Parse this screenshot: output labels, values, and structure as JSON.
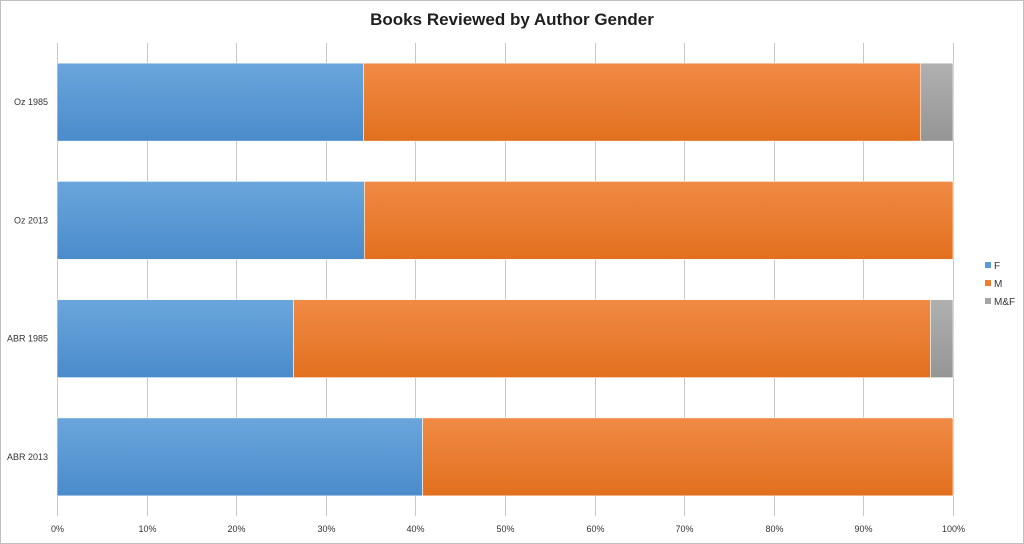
{
  "chart_data": {
    "type": "bar",
    "orientation": "horizontal",
    "stacked": "100%",
    "title": "Books Reviewed by Author Gender",
    "xlabel": "",
    "ylabel": "",
    "categories": [
      "Oz 1985",
      "Oz 2013",
      "ABR 1985",
      "ABR 2013"
    ],
    "series": [
      {
        "name": "F",
        "color": "#5b9bd5",
        "values": [
          34.2,
          34.3,
          26.4,
          40.8
        ]
      },
      {
        "name": "M",
        "color": "#ed7d31",
        "values": [
          62.2,
          65.7,
          71.1,
          59.2
        ]
      },
      {
        "name": "M&F",
        "color": "#a5a5a5",
        "values": [
          3.6,
          0,
          2.5,
          0
        ]
      }
    ],
    "xlim": [
      0,
      100
    ],
    "xticks": [
      "0%",
      "10%",
      "20%",
      "30%",
      "40%",
      "50%",
      "60%",
      "70%",
      "80%",
      "90%",
      "100%"
    ],
    "grid": true,
    "legend_position": "right"
  }
}
